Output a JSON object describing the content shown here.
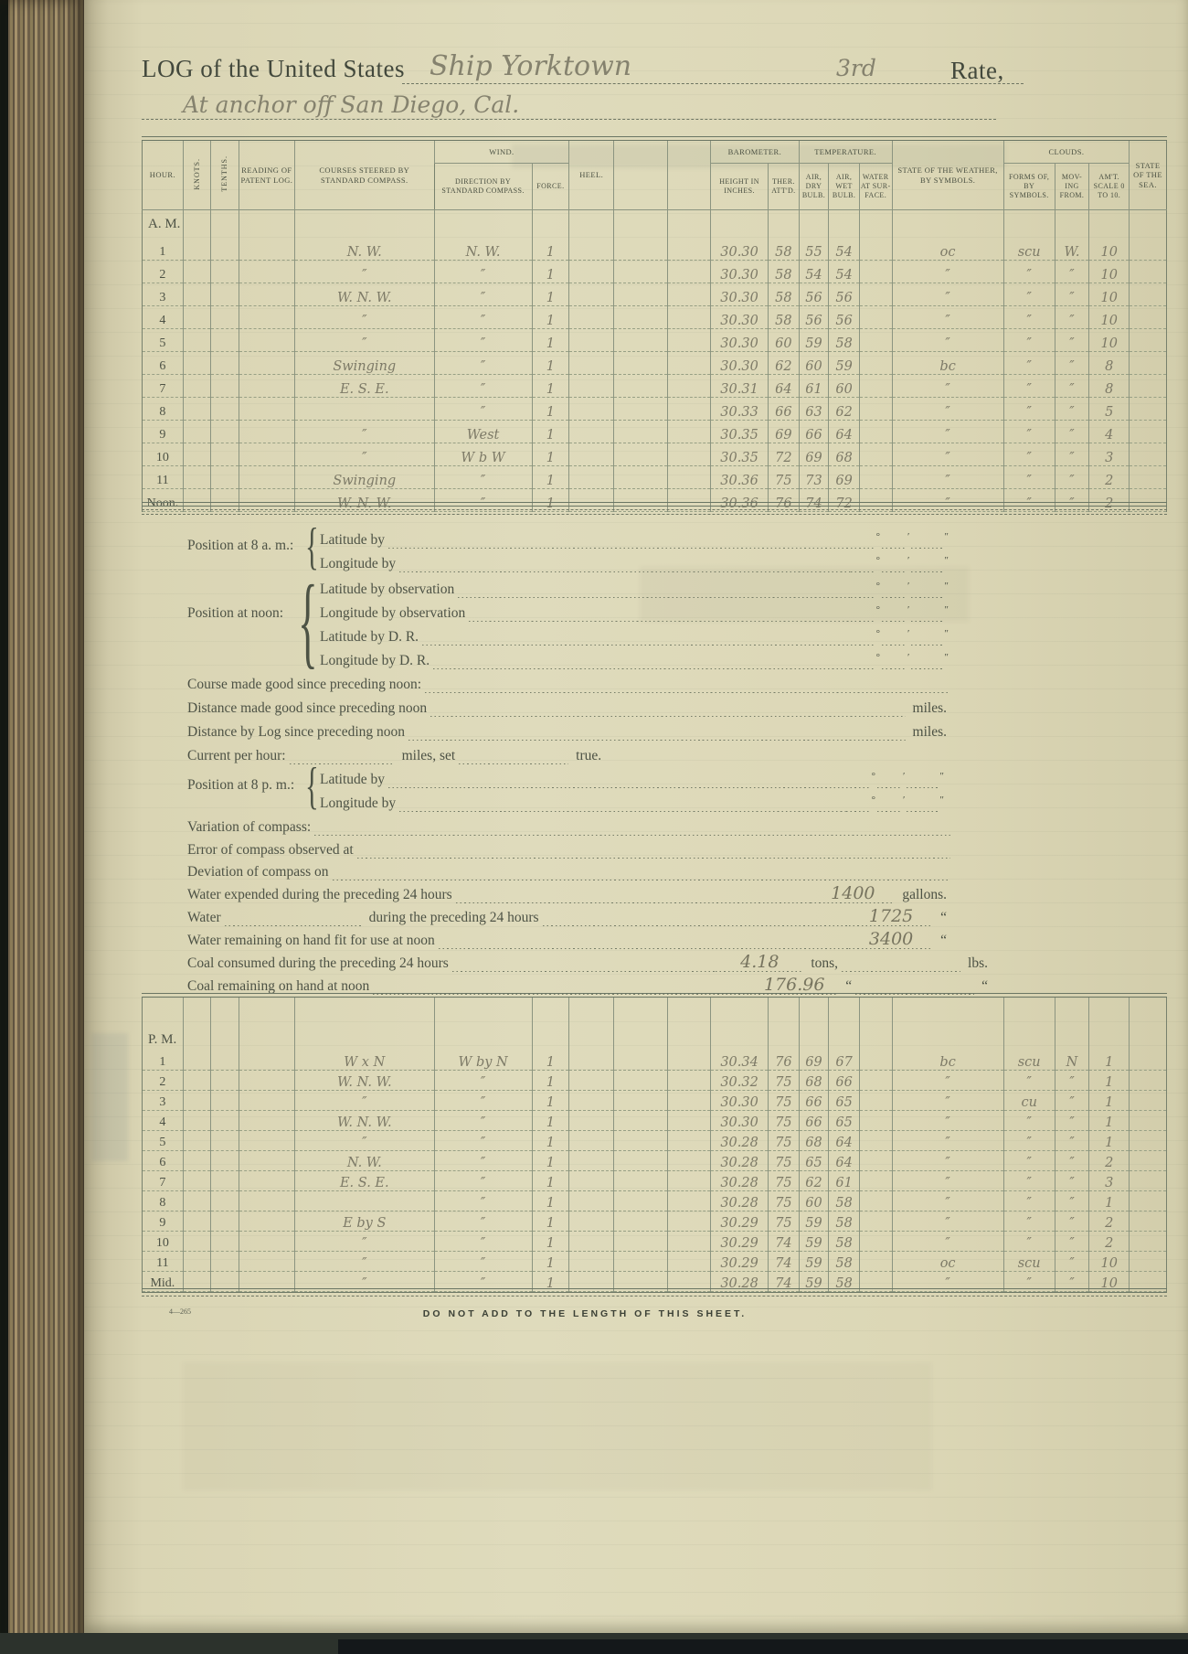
{
  "page": {
    "title_prefix": "LOG of the United States",
    "ship_name": "Ship Yorktown",
    "rate_value": "3rd",
    "rate_label": "Rate,",
    "location_line": "At anchor off San Diego, Cal.",
    "footer_warning": "DO NOT ADD TO THE LENGTH OF THIS SHEET.",
    "form_number": "4—265"
  },
  "colors": {
    "paper": "#ded9ba",
    "printed_ink": "#4d5245",
    "pencil": "#7d7a67",
    "table_rule": "#8b9480",
    "background": "#57635b"
  },
  "table": {
    "headers": {
      "hour": "HOUR.",
      "knots": "KNOTS.",
      "tenths": "TENTHS.",
      "reading": "READING OF PATENT LOG.",
      "courses": "COURSES STEERED BY STANDARD COMPASS.",
      "wind": "WIND.",
      "direction": "DIRECTION BY STANDARD COMPASS.",
      "force": "FORCE.",
      "heel": "HEEL.",
      "barometer": "BAROMETER.",
      "height": "HEIGHT IN INCHES.",
      "ther": "THER. ATT'D.",
      "temperature": "TEMPERATURE.",
      "air_dry": "AIR, DRY BULB.",
      "air_wet": "AIR, WET BULB.",
      "water_surface": "WATER AT SUR- FACE.",
      "weather": "STATE OF THE WEATHER, BY SYMBOLS.",
      "clouds": "CLOUDS.",
      "forms": "FORMS OF, BY SYMBOLS.",
      "moving": "MOV- ING FROM.",
      "amount": "AM'T. SCALE 0 TO 10.",
      "sea": "STATE OF THE SEA."
    },
    "am_label": "A. M.",
    "pm_label": "P. M.",
    "am_rows": [
      [
        "1",
        "",
        "",
        "",
        "N. W.",
        "N. W.",
        "1",
        "",
        "",
        "",
        "30.30",
        "58",
        "55",
        "54",
        "",
        "oc",
        "scu",
        "W.",
        "10",
        ""
      ],
      [
        "2",
        "",
        "",
        "",
        "″",
        "″",
        "1",
        "",
        "",
        "",
        "30.30",
        "58",
        "54",
        "54",
        "",
        "″",
        "″",
        "″",
        "10",
        ""
      ],
      [
        "3",
        "",
        "",
        "",
        "W. N. W.",
        "″",
        "1",
        "",
        "",
        "",
        "30.30",
        "58",
        "56",
        "56",
        "",
        "″",
        "″",
        "″",
        "10",
        ""
      ],
      [
        "4",
        "",
        "",
        "",
        "″",
        "″",
        "1",
        "",
        "",
        "",
        "30.30",
        "58",
        "56",
        "56",
        "",
        "″",
        "″",
        "″",
        "10",
        ""
      ],
      [
        "5",
        "",
        "",
        "",
        "″",
        "″",
        "1",
        "",
        "",
        "",
        "30.30",
        "60",
        "59",
        "58",
        "",
        "″",
        "″",
        "″",
        "10",
        ""
      ],
      [
        "6",
        "",
        "",
        "",
        "Swinging",
        "″",
        "1",
        "",
        "",
        "",
        "30.30",
        "62",
        "60",
        "59",
        "",
        "bc",
        "″",
        "″",
        "8",
        ""
      ],
      [
        "7",
        "",
        "",
        "",
        "E. S. E.",
        "″",
        "1",
        "",
        "",
        "",
        "30.31",
        "64",
        "61",
        "60",
        "",
        "″",
        "″",
        "″",
        "8",
        ""
      ],
      [
        "8",
        "",
        "",
        "",
        "",
        "″",
        "1",
        "",
        "",
        "",
        "30.33",
        "66",
        "63",
        "62",
        "",
        "″",
        "″",
        "″",
        "5",
        ""
      ],
      [
        "9",
        "",
        "",
        "",
        "″",
        "West",
        "1",
        "",
        "",
        "",
        "30.35",
        "69",
        "66",
        "64",
        "",
        "″",
        "″",
        "″",
        "4",
        ""
      ],
      [
        "10",
        "",
        "",
        "",
        "″",
        "W b W",
        "1",
        "",
        "",
        "",
        "30.35",
        "72",
        "69",
        "68",
        "",
        "″",
        "″",
        "″",
        "3",
        ""
      ],
      [
        "11",
        "",
        "",
        "",
        "Swinging",
        "″",
        "1",
        "",
        "",
        "",
        "30.36",
        "75",
        "73",
        "69",
        "",
        "″",
        "″",
        "″",
        "2",
        ""
      ],
      [
        "Noon.",
        "",
        "",
        "",
        "W. N. W.",
        "″",
        "1",
        "",
        "",
        "",
        "30.36",
        "76",
        "74",
        "72",
        "",
        "″",
        "″",
        "″",
        "2",
        ""
      ]
    ],
    "pm_rows": [
      [
        "1",
        "",
        "",
        "",
        "W x N",
        "W by N",
        "1",
        "",
        "",
        "",
        "30.34",
        "76",
        "69",
        "67",
        "",
        "bc",
        "scu",
        "N",
        "1",
        ""
      ],
      [
        "2",
        "",
        "",
        "",
        "W. N. W.",
        "″",
        "1",
        "",
        "",
        "",
        "30.32",
        "75",
        "68",
        "66",
        "",
        "″",
        "″",
        "″",
        "1",
        ""
      ],
      [
        "3",
        "",
        "",
        "",
        "″",
        "″",
        "1",
        "",
        "",
        "",
        "30.30",
        "75",
        "66",
        "65",
        "",
        "″",
        "cu",
        "″",
        "1",
        ""
      ],
      [
        "4",
        "",
        "",
        "",
        "W. N. W.",
        "″",
        "1",
        "",
        "",
        "",
        "30.30",
        "75",
        "66",
        "65",
        "",
        "″",
        "″",
        "″",
        "1",
        ""
      ],
      [
        "5",
        "",
        "",
        "",
        "″",
        "″",
        "1",
        "",
        "",
        "",
        "30.28",
        "75",
        "68",
        "64",
        "",
        "″",
        "″",
        "″",
        "1",
        ""
      ],
      [
        "6",
        "",
        "",
        "",
        "N. W.",
        "″",
        "1",
        "",
        "",
        "",
        "30.28",
        "75",
        "65",
        "64",
        "",
        "″",
        "″",
        "″",
        "2",
        ""
      ],
      [
        "7",
        "",
        "",
        "",
        "E. S. E.",
        "″",
        "1",
        "",
        "",
        "",
        "30.28",
        "75",
        "62",
        "61",
        "",
        "″",
        "″",
        "″",
        "3",
        ""
      ],
      [
        "8",
        "",
        "",
        "",
        "",
        "″",
        "1",
        "",
        "",
        "",
        "30.28",
        "75",
        "60",
        "58",
        "",
        "″",
        "″",
        "″",
        "1",
        ""
      ],
      [
        "9",
        "",
        "",
        "",
        "E by S",
        "″",
        "1",
        "",
        "",
        "",
        "30.29",
        "75",
        "59",
        "58",
        "",
        "″",
        "″",
        "″",
        "2",
        ""
      ],
      [
        "10",
        "",
        "",
        "",
        "″",
        "″",
        "1",
        "",
        "",
        "",
        "30.29",
        "74",
        "59",
        "58",
        "",
        "″",
        "″",
        "″",
        "2",
        ""
      ],
      [
        "11",
        "",
        "",
        "",
        "″",
        "″",
        "1",
        "",
        "",
        "",
        "30.29",
        "74",
        "59",
        "58",
        "",
        "oc",
        "scu",
        "″",
        "10",
        ""
      ],
      [
        "Mid.",
        "",
        "",
        "",
        "″",
        "″",
        "1",
        "",
        "",
        "",
        "30.28",
        "74",
        "59",
        "58",
        "",
        "″",
        "″",
        "″",
        "10",
        ""
      ]
    ]
  },
  "fields": {
    "pos8am_label": "Position at 8 a. m.:",
    "posnoon_label": "Position at noon:",
    "pos8pm_label": "Position at 8 p. m.:",
    "lat_by": "Latitude by",
    "lon_by": "Longitude by",
    "lat_obs": "Latitude by observation",
    "lon_obs": "Longitude by observation",
    "lat_dr": "Latitude by D. R.",
    "lon_dr": "Longitude by D. R.",
    "course_made": "Course made good since preceding noon:",
    "dist_made": "Distance made good since preceding noon",
    "dist_log": "Distance by Log since preceding noon",
    "miles": "miles.",
    "current_label": "Current per hour:",
    "current_mid": "miles, set",
    "current_end": "true.",
    "variation": "Variation of compass:",
    "error": "Error of compass observed at",
    "deviation": "Deviation of compass on",
    "water_expended": "Water expended during the preceding 24 hours",
    "water_expended_value": "1400",
    "gallons": "gallons.",
    "water_blank_label": "Water",
    "water_during": "during the preceding 24 hours",
    "water_during_value": "1725",
    "water_remaining": "Water remaining on hand fit for use at noon",
    "water_remaining_value": "3400",
    "coal_consumed": "Coal consumed during the preceding 24 hours",
    "coal_consumed_value": "4.18",
    "tons": "tons,",
    "lbs": "lbs.",
    "coal_remaining": "Coal remaining on hand at noon",
    "coal_remaining_value": "176.96",
    "ditto": "“",
    "deg": "°",
    "min": "′",
    "sec": "″"
  }
}
